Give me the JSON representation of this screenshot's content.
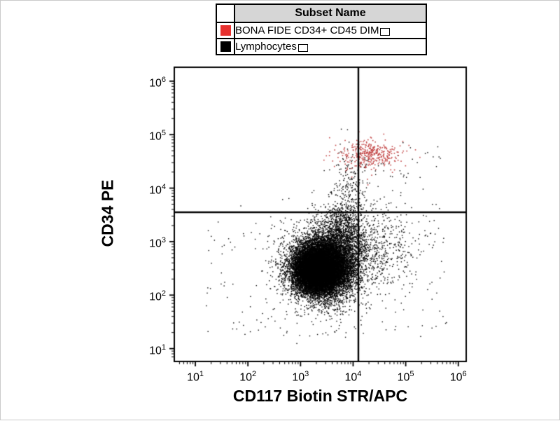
{
  "legend": {
    "header": "Subset Name",
    "rows": [
      {
        "label": "BONA FIDE CD34+ CD45 DIM",
        "color": "#e8312f"
      },
      {
        "label": "Lymphocytes",
        "color": "#000000"
      }
    ]
  },
  "chart_data": {
    "type": "scatter",
    "title": "",
    "xlabel": "CD117 Biotin STR/APC",
    "ylabel": "CD34 PE",
    "x_scale": "log10",
    "y_scale": "log10",
    "x_range_log": [
      0.6,
      6.15
    ],
    "y_range_log": [
      0.76,
      6.26
    ],
    "x_ticks_log": [
      1,
      2,
      3,
      4,
      5,
      6
    ],
    "y_ticks_log": [
      1,
      2,
      3,
      4,
      5,
      6
    ],
    "grid": false,
    "legend_position": "top-center",
    "quadrant_gate": {
      "x_log": 4.1,
      "y_log": 3.55
    },
    "series": [
      {
        "name": "Lymphocytes",
        "color": "#000000",
        "point_size": 1.4,
        "clusters": [
          {
            "cx": 3.42,
            "cy": 2.52,
            "sx": 0.27,
            "sy": 0.25,
            "n": 12000
          },
          {
            "cx": 3.28,
            "cy": 2.44,
            "sx": 0.2,
            "sy": 0.2,
            "n": 6000
          },
          {
            "cx": 3.5,
            "cy": 2.6,
            "sx": 0.42,
            "sy": 0.42,
            "n": 2200
          },
          {
            "cx": 3.8,
            "cy": 3.15,
            "sx": 0.22,
            "sy": 0.28,
            "n": 1100
          },
          {
            "cx": 3.95,
            "cy": 4.0,
            "sx": 0.17,
            "sy": 0.38,
            "n": 200
          },
          {
            "cx": 4.5,
            "cy": 2.85,
            "sx": 0.42,
            "sy": 0.38,
            "n": 450
          }
        ],
        "uniform": [
          {
            "x0": 1.2,
            "x1": 5.8,
            "y0": 1.2,
            "y1": 3.4,
            "n": 180
          },
          {
            "x0": 4.2,
            "x1": 5.7,
            "y0": 3.6,
            "y1": 4.9,
            "n": 45
          }
        ]
      },
      {
        "name": "BONA FIDE CD34+ CD45 DIM",
        "color": "#c24545",
        "point_size": 1.6,
        "clusters": [
          {
            "cx": 4.3,
            "cy": 4.63,
            "sx": 0.27,
            "sy": 0.12,
            "n": 300
          },
          {
            "cx": 4.25,
            "cy": 4.55,
            "sx": 0.45,
            "sy": 0.2,
            "n": 55
          }
        ],
        "uniform": []
      }
    ]
  }
}
